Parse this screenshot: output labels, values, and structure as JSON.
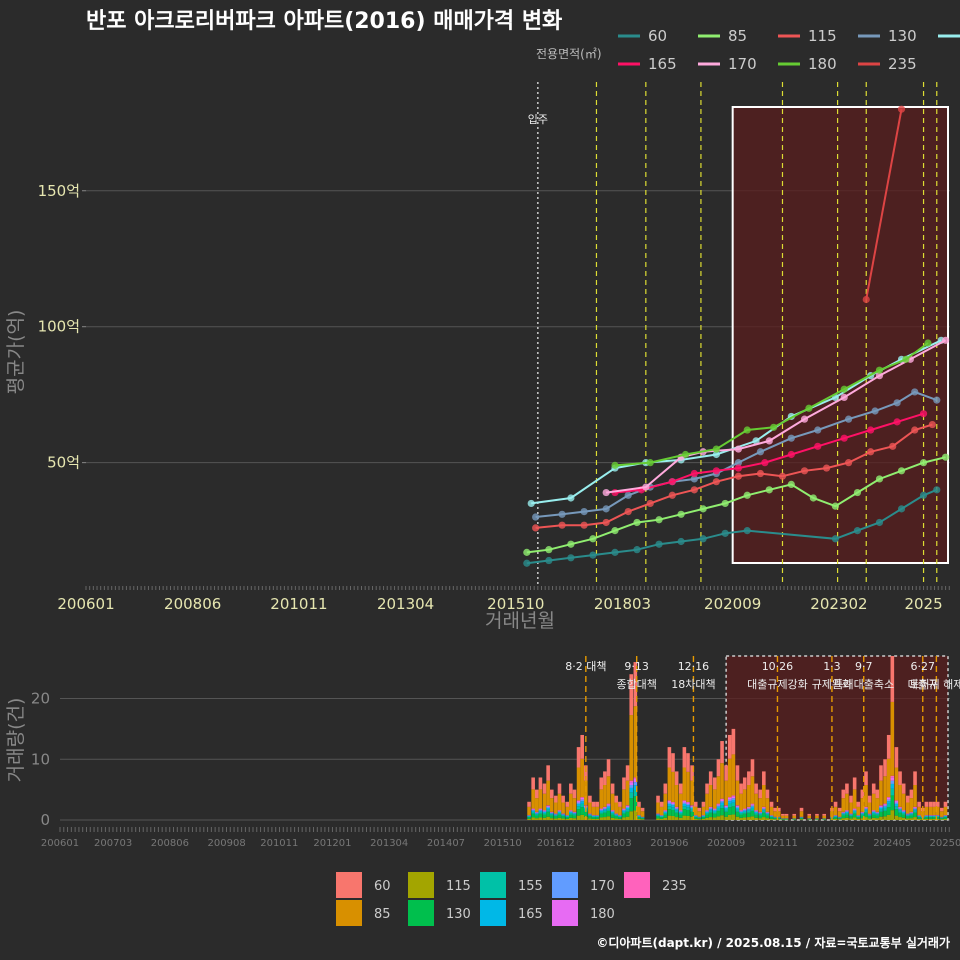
{
  "title": "반포 아크로리버파크 아파트(2016) 매매가격 변화",
  "credit": "©디아파트(dapt.kr) / 2025.08.15 / 자료=국토교통부 실거래가",
  "chart_data": [
    {
      "type": "line",
      "legend_title": "전용면적(㎡)",
      "xlabel": "거래년월",
      "ylabel": "평균가(억)",
      "xlim": [
        2006.0,
        2025.6
      ],
      "ylim": [
        5,
        190
      ],
      "x_ticks": [
        {
          "x": 2006.0,
          "label": "200601"
        },
        {
          "x": 2008.42,
          "label": "200806"
        },
        {
          "x": 2010.83,
          "label": "201011"
        },
        {
          "x": 2013.25,
          "label": "201304"
        },
        {
          "x": 2015.75,
          "label": "201510"
        },
        {
          "x": 2018.17,
          "label": "201803"
        },
        {
          "x": 2020.67,
          "label": "202009"
        },
        {
          "x": 2023.08,
          "label": "202302"
        },
        {
          "x": 2025.0,
          "label": "2025"
        }
      ],
      "y_ticks": [
        {
          "y": 50,
          "label": "50억"
        },
        {
          "y": 100,
          "label": "100억"
        },
        {
          "y": 150,
          "label": "150억"
        }
      ],
      "annotation": {
        "x": 2016.25,
        "label": "입주"
      },
      "event_lines": [
        2017.58,
        2018.7,
        2019.95,
        2021.8,
        2023.05,
        2023.7,
        2025.0,
        2025.3
      ],
      "highlight_range": [
        2020.67,
        2025.6
      ],
      "series": [
        {
          "name": "60",
          "color": "#2a8c8c",
          "points": [
            [
              2016.0,
              13
            ],
            [
              2016.5,
              14
            ],
            [
              2017.0,
              15
            ],
            [
              2017.5,
              16
            ],
            [
              2018.0,
              17
            ],
            [
              2018.5,
              18
            ],
            [
              2019.0,
              20
            ],
            [
              2019.5,
              21
            ],
            [
              2020.0,
              22
            ],
            [
              2020.5,
              24
            ],
            [
              2021.0,
              25
            ],
            [
              2023.0,
              22
            ],
            [
              2023.5,
              25
            ],
            [
              2024.0,
              28
            ],
            [
              2024.5,
              33
            ],
            [
              2025.0,
              38
            ],
            [
              2025.3,
              40
            ]
          ]
        },
        {
          "name": "85",
          "color": "#90ee70",
          "points": [
            [
              2016.0,
              17
            ],
            [
              2016.5,
              18
            ],
            [
              2017.0,
              20
            ],
            [
              2017.5,
              22
            ],
            [
              2018.0,
              25
            ],
            [
              2018.5,
              28
            ],
            [
              2019.0,
              29
            ],
            [
              2019.5,
              31
            ],
            [
              2020.0,
              33
            ],
            [
              2020.5,
              35
            ],
            [
              2021.0,
              38
            ],
            [
              2021.5,
              40
            ],
            [
              2022.0,
              42
            ],
            [
              2022.5,
              37
            ],
            [
              2023.0,
              34
            ],
            [
              2023.5,
              39
            ],
            [
              2024.0,
              44
            ],
            [
              2024.5,
              47
            ],
            [
              2025.0,
              50
            ],
            [
              2025.5,
              52
            ]
          ]
        },
        {
          "name": "115",
          "color": "#ee5555",
          "points": [
            [
              2016.2,
              26
            ],
            [
              2016.8,
              27
            ],
            [
              2017.3,
              27
            ],
            [
              2017.8,
              28
            ],
            [
              2018.3,
              32
            ],
            [
              2018.8,
              35
            ],
            [
              2019.3,
              38
            ],
            [
              2019.8,
              40
            ],
            [
              2020.3,
              43
            ],
            [
              2020.8,
              45
            ],
            [
              2021.3,
              46
            ],
            [
              2021.8,
              45
            ],
            [
              2022.3,
              47
            ],
            [
              2022.8,
              48
            ],
            [
              2023.3,
              50
            ],
            [
              2023.8,
              54
            ],
            [
              2024.3,
              56
            ],
            [
              2024.8,
              62
            ],
            [
              2025.2,
              64
            ]
          ]
        },
        {
          "name": "130",
          "color": "#7799bb",
          "points": [
            [
              2016.2,
              30
            ],
            [
              2016.8,
              31
            ],
            [
              2017.3,
              32
            ],
            [
              2017.8,
              33
            ],
            [
              2018.3,
              38
            ],
            [
              2018.8,
              41
            ],
            [
              2019.3,
              43
            ],
            [
              2019.8,
              44
            ],
            [
              2020.3,
              46
            ],
            [
              2020.8,
              50
            ],
            [
              2021.3,
              54
            ],
            [
              2022.0,
              59
            ],
            [
              2022.6,
              62
            ],
            [
              2023.3,
              66
            ],
            [
              2023.9,
              69
            ],
            [
              2024.4,
              72
            ],
            [
              2024.8,
              76
            ],
            [
              2025.3,
              73
            ]
          ]
        },
        {
          "name": "155",
          "color": "#99eeee",
          "points": [
            [
              2016.1,
              35
            ],
            [
              2017.0,
              37
            ],
            [
              2018.0,
              48
            ],
            [
              2018.7,
              50
            ],
            [
              2019.5,
              51
            ],
            [
              2020.3,
              53
            ],
            [
              2021.2,
              58
            ],
            [
              2022.0,
              67
            ],
            [
              2023.0,
              74
            ],
            [
              2023.8,
              82
            ],
            [
              2024.5,
              88
            ],
            [
              2025.4,
              95
            ]
          ]
        },
        {
          "name": "165",
          "color": "#ff1166",
          "points": [
            [
              2018.0,
              39
            ],
            [
              2018.6,
              40
            ],
            [
              2019.3,
              43
            ],
            [
              2019.8,
              46
            ],
            [
              2020.3,
              47
            ],
            [
              2020.8,
              48
            ],
            [
              2021.4,
              50
            ],
            [
              2022.0,
              53
            ],
            [
              2022.6,
              56
            ],
            [
              2023.2,
              59
            ],
            [
              2023.8,
              62
            ],
            [
              2024.4,
              65
            ],
            [
              2025.0,
              68
            ]
          ]
        },
        {
          "name": "170",
          "color": "#ffaadd",
          "points": [
            [
              2017.8,
              39
            ],
            [
              2018.7,
              41
            ],
            [
              2019.5,
              52
            ],
            [
              2020.0,
              54
            ],
            [
              2020.8,
              55
            ],
            [
              2021.5,
              58
            ],
            [
              2022.3,
              66
            ],
            [
              2023.2,
              74
            ],
            [
              2024.0,
              82
            ],
            [
              2024.7,
              88
            ],
            [
              2025.5,
              95
            ]
          ]
        },
        {
          "name": "180",
          "color": "#66cc33",
          "points": [
            [
              2018.0,
              49
            ],
            [
              2018.8,
              50
            ],
            [
              2019.6,
              53
            ],
            [
              2020.3,
              55
            ],
            [
              2021.0,
              62
            ],
            [
              2021.6,
              63
            ],
            [
              2022.4,
              70
            ],
            [
              2023.2,
              77
            ],
            [
              2024.0,
              84
            ],
            [
              2024.6,
              88
            ],
            [
              2025.1,
              94
            ]
          ]
        },
        {
          "name": "235",
          "color": "#dd4444",
          "points": [
            [
              2023.7,
              110
            ],
            [
              2024.5,
              180
            ]
          ]
        }
      ]
    },
    {
      "type": "bar",
      "ylabel": "거래량(건)",
      "xlim": [
        2006.0,
        2025.6
      ],
      "ylim": [
        0,
        27
      ],
      "x_ticks": [
        {
          "x": 2006.0,
          "label": "200601"
        },
        {
          "x": 2007.17,
          "label": "200703"
        },
        {
          "x": 2008.42,
          "label": "200806"
        },
        {
          "x": 2009.67,
          "label": "200908"
        },
        {
          "x": 2010.83,
          "label": "201011"
        },
        {
          "x": 2012.0,
          "label": "201201"
        },
        {
          "x": 2013.25,
          "label": "201304"
        },
        {
          "x": 2014.5,
          "label": "201407"
        },
        {
          "x": 2015.75,
          "label": "201510"
        },
        {
          "x": 2016.92,
          "label": "201612"
        },
        {
          "x": 2018.17,
          "label": "201803"
        },
        {
          "x": 2019.42,
          "label": "201906"
        },
        {
          "x": 2020.67,
          "label": "202009"
        },
        {
          "x": 2021.83,
          "label": "202111"
        },
        {
          "x": 2023.08,
          "label": "202302"
        },
        {
          "x": 2024.33,
          "label": "202405"
        },
        {
          "x": 2025.5,
          "label": "20250"
        }
      ],
      "y_ticks": [
        {
          "y": 0,
          "label": "0"
        },
        {
          "y": 10,
          "label": "10"
        },
        {
          "y": 20,
          "label": "20"
        }
      ],
      "events": [
        {
          "x": 2017.58,
          "l1": "8·2 대책",
          "l2": ""
        },
        {
          "x": 2018.7,
          "l1": "9·13",
          "l2": "종합대책"
        },
        {
          "x": 2019.95,
          "l1": "12·16",
          "l2": "18차대책"
        },
        {
          "x": 2021.8,
          "l1": "10·26",
          "l2": "대출규제강화"
        },
        {
          "x": 2023.0,
          "l1": "1·3",
          "l2": "규제완화"
        },
        {
          "x": 2023.7,
          "l1": "9·7",
          "l2": "특례대출축소"
        },
        {
          "x": 2025.0,
          "l1": "6·27",
          "l2": "대출규"
        },
        {
          "x": 2025.3,
          "l1": "",
          "l2": "토허제 해제"
        }
      ],
      "highlight_range": [
        2020.67,
        2025.6
      ],
      "categories": [
        "60",
        "85",
        "115",
        "130",
        "155",
        "165",
        "170",
        "180",
        "235"
      ],
      "colors": [
        "#f8766d",
        "#d89000",
        "#a3a500",
        "#00bf4d",
        "#00c1a7",
        "#00b8e7",
        "#619cff",
        "#e76bf3",
        "#ff62bc"
      ],
      "monthly_totals": [
        [
          2016.33,
          3
        ],
        [
          2016.42,
          7
        ],
        [
          2016.5,
          5
        ],
        [
          2016.58,
          7
        ],
        [
          2016.67,
          6
        ],
        [
          2016.75,
          9
        ],
        [
          2016.83,
          5
        ],
        [
          2016.92,
          4
        ],
        [
          2017.0,
          6
        ],
        [
          2017.08,
          4
        ],
        [
          2017.17,
          3
        ],
        [
          2017.25,
          6
        ],
        [
          2017.33,
          5
        ],
        [
          2017.42,
          12
        ],
        [
          2017.5,
          14
        ],
        [
          2017.58,
          9
        ],
        [
          2017.67,
          4
        ],
        [
          2017.75,
          3
        ],
        [
          2017.83,
          3
        ],
        [
          2017.92,
          7
        ],
        [
          2018.0,
          8
        ],
        [
          2018.08,
          10
        ],
        [
          2018.17,
          6
        ],
        [
          2018.25,
          4
        ],
        [
          2018.33,
          3
        ],
        [
          2018.42,
          7
        ],
        [
          2018.5,
          9
        ],
        [
          2018.58,
          24
        ],
        [
          2018.67,
          26
        ],
        [
          2018.75,
          3
        ],
        [
          2018.83,
          2
        ],
        [
          2019.17,
          4
        ],
        [
          2019.25,
          3
        ],
        [
          2019.33,
          6
        ],
        [
          2019.42,
          12
        ],
        [
          2019.5,
          11
        ],
        [
          2019.58,
          8
        ],
        [
          2019.67,
          6
        ],
        [
          2019.75,
          12
        ],
        [
          2019.83,
          11
        ],
        [
          2019.92,
          9
        ],
        [
          2020.0,
          3
        ],
        [
          2020.08,
          2
        ],
        [
          2020.17,
          3
        ],
        [
          2020.25,
          6
        ],
        [
          2020.33,
          8
        ],
        [
          2020.42,
          7
        ],
        [
          2020.5,
          10
        ],
        [
          2020.58,
          13
        ],
        [
          2020.67,
          9
        ],
        [
          2020.75,
          14
        ],
        [
          2020.83,
          15
        ],
        [
          2020.92,
          9
        ],
        [
          2021.0,
          6
        ],
        [
          2021.08,
          7
        ],
        [
          2021.17,
          8
        ],
        [
          2021.25,
          10
        ],
        [
          2021.33,
          6
        ],
        [
          2021.42,
          5
        ],
        [
          2021.5,
          8
        ],
        [
          2021.58,
          5
        ],
        [
          2021.67,
          3
        ],
        [
          2021.75,
          2
        ],
        [
          2021.83,
          2
        ],
        [
          2021.92,
          1
        ],
        [
          2022.0,
          1
        ],
        [
          2022.17,
          1
        ],
        [
          2022.33,
          2
        ],
        [
          2022.5,
          1
        ],
        [
          2022.67,
          1
        ],
        [
          2022.83,
          1
        ],
        [
          2023.0,
          2
        ],
        [
          2023.08,
          3
        ],
        [
          2023.17,
          2
        ],
        [
          2023.25,
          5
        ],
        [
          2023.33,
          6
        ],
        [
          2023.42,
          4
        ],
        [
          2023.5,
          7
        ],
        [
          2023.58,
          3
        ],
        [
          2023.67,
          5
        ],
        [
          2023.75,
          8
        ],
        [
          2023.83,
          4
        ],
        [
          2023.92,
          6
        ],
        [
          2024.0,
          5
        ],
        [
          2024.08,
          9
        ],
        [
          2024.17,
          10
        ],
        [
          2024.25,
          14
        ],
        [
          2024.33,
          27
        ],
        [
          2024.42,
          12
        ],
        [
          2024.5,
          8
        ],
        [
          2024.58,
          6
        ],
        [
          2024.67,
          4
        ],
        [
          2024.75,
          5
        ],
        [
          2024.83,
          8
        ],
        [
          2024.92,
          3
        ],
        [
          2025.0,
          2
        ],
        [
          2025.08,
          3
        ],
        [
          2025.17,
          3
        ],
        [
          2025.25,
          3
        ],
        [
          2025.33,
          3
        ],
        [
          2025.42,
          2
        ],
        [
          2025.5,
          3
        ]
      ]
    }
  ]
}
